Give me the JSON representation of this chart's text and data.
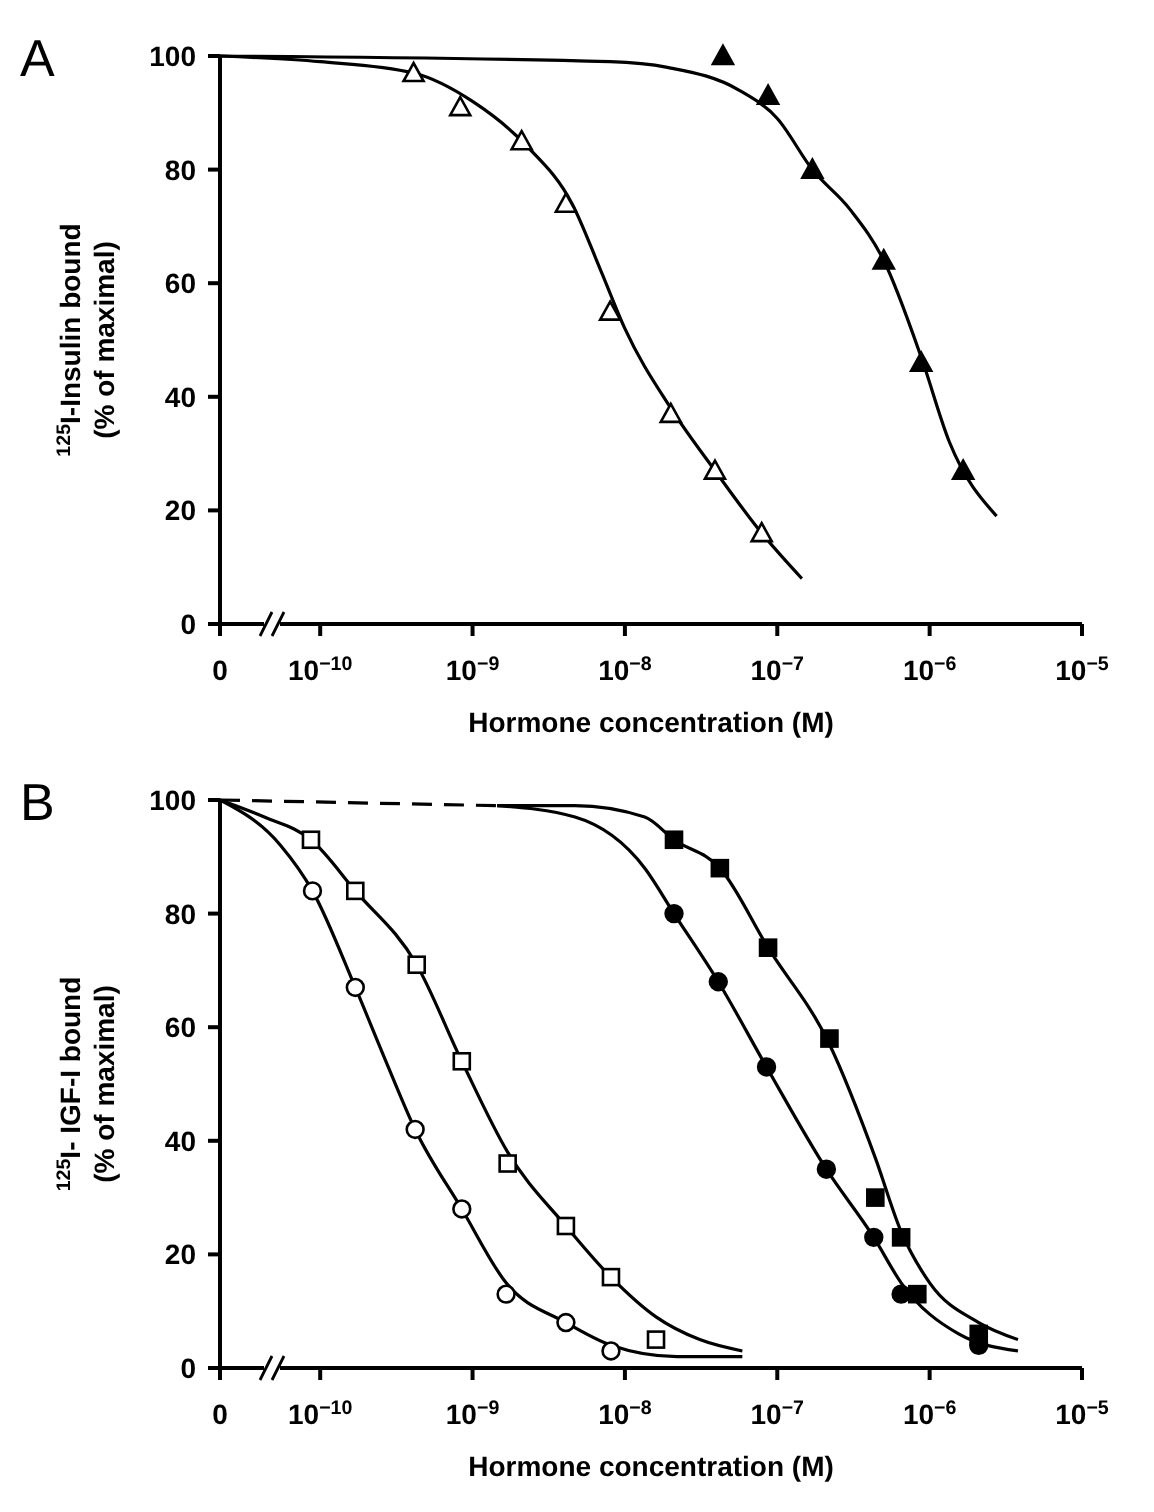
{
  "chart_data": [
    {
      "type": "scatter",
      "title": "A",
      "xlabel": "Hormone concentration (M)",
      "ylabel": "$^{125}$I-Insulin bound\n(% of maximal)",
      "log": "x",
      "xlim": [
        2.2e-11,
        1e-05
      ],
      "xticks": [
        {
          "value": 2.2e-11,
          "label": "0"
        },
        {
          "value": 1e-10,
          "label": "10$^{−10}$"
        },
        {
          "value": 1e-09,
          "label": "10$^{−9}$"
        },
        {
          "value": 1e-08,
          "label": "10$^{−8}$"
        },
        {
          "value": 1e-07,
          "label": "10$^{−7}$"
        },
        {
          "value": 1e-06,
          "label": "10$^{−6}$"
        },
        {
          "value": 1e-05,
          "label": "10$^{−5}$"
        }
      ],
      "ylim": [
        0,
        100
      ],
      "yticks": [
        0,
        20,
        40,
        60,
        80,
        100
      ],
      "series": [
        {
          "type": "line",
          "color": "#000000",
          "marker": "none",
          "line_style": "solid",
          "x": [
            2.2e-11,
            1e-10,
            4.1e-10,
            1e-09,
            2.3e-09,
            4.5e-09,
            7e-09,
            1e-08,
            2e-08,
            3.9e-08,
            7.9e-08,
            1.45e-07
          ],
          "values": [
            100,
            99,
            97,
            92,
            84,
            74,
            62,
            52,
            38,
            27,
            16,
            8
          ]
        },
        {
          "type": "line",
          "color": "#000000",
          "marker": "none",
          "line_style": "solid",
          "x": [
            2.2e-11,
            8e-09,
            1.9e-08,
            5.6e-08,
            1e-07,
            1.7e-07,
            3e-07,
            5e-07,
            8.8e-07,
            1.35e-06,
            2.75e-06
          ],
          "values": [
            100,
            99,
            98,
            94,
            89,
            80,
            73,
            64,
            47,
            32,
            19
          ]
        },
        {
          "color": "#ffffff",
          "marker": "triangle",
          "x": [
            4.1e-10,
            8.3e-10,
            2.1e-09,
            4.1e-09,
            8e-09,
            2e-08,
            3.9e-08,
            7.9e-08
          ],
          "values": [
            97,
            91,
            85,
            74,
            55,
            37,
            27,
            16
          ]
        },
        {
          "color": "#000000",
          "marker": "triangle",
          "x": [
            4.4e-08,
            8.7e-08,
            1.7e-07,
            5e-07,
            8.8e-07,
            1.66e-06
          ],
          "values": [
            100,
            93,
            80,
            64,
            46,
            27
          ]
        }
      ]
    },
    {
      "type": "scatter",
      "title": "B",
      "xlabel": "Hormone concentration (M)",
      "ylabel": "$^{125}$I- IGF-I bound\n(% of maximal)",
      "log": "x",
      "xlim": [
        2.2e-11,
        1e-05
      ],
      "xticks": [
        {
          "value": 2.2e-11,
          "label": "0"
        },
        {
          "value": 1e-10,
          "label": "10$^{−10}$"
        },
        {
          "value": 1e-09,
          "label": "10$^{−9}$"
        },
        {
          "value": 1e-08,
          "label": "10$^{−8}$"
        },
        {
          "value": 1e-07,
          "label": "10$^{−7}$"
        },
        {
          "value": 1e-06,
          "label": "10$^{−6}$"
        },
        {
          "value": 1e-05,
          "label": "10$^{−5}$"
        }
      ],
      "ylim": [
        0,
        100
      ],
      "yticks": [
        0,
        20,
        40,
        60,
        80,
        100
      ],
      "series": [
        {
          "type": "line",
          "color": "#000000",
          "marker": "none",
          "line_style": "dashed",
          "x": [
            2.2e-11,
            1.45e-09
          ],
          "values": [
            100,
            99
          ]
        },
        {
          "type": "line",
          "color": "#000000",
          "marker": "none",
          "line_style": "solid",
          "x": [
            2.2e-11,
            5.5e-11,
            8.9e-11,
            1.7e-10,
            2.7e-10,
            4.2e-10,
            8.5e-10,
            1.66e-09,
            4.1e-09,
            8.1e-09,
            2.2e-08,
            5.9e-08
          ],
          "values": [
            100,
            92,
            84,
            67,
            54,
            42,
            28,
            15,
            8,
            4,
            2,
            2
          ]
        },
        {
          "type": "line",
          "color": "#000000",
          "marker": "none",
          "line_style": "solid",
          "x": [
            2.2e-11,
            4.3e-11,
            8.7e-11,
            1.7e-10,
            4.3e-10,
            8.5e-10,
            1.7e-09,
            4.1e-09,
            8.1e-09,
            1.6e-08,
            3.1e-08,
            5.9e-08
          ],
          "values": [
            100,
            97,
            93,
            84,
            71,
            54,
            38,
            25,
            16,
            9,
            5,
            3
          ]
        },
        {
          "type": "line",
          "color": "#000000",
          "marker": "none",
          "line_style": "solid",
          "x": [
            1.45e-09,
            4.7e-09,
            1.35e-08,
            2.1e-08,
            4.1e-08,
            8.5e-08,
            2.1e-07,
            4.3e-07,
            6.5e-07,
            1.55e-06,
            3.8e-06
          ],
          "values": [
            99,
            97,
            88,
            80,
            68,
            53,
            35,
            23,
            15,
            6,
            3
          ]
        },
        {
          "type": "line",
          "color": "#000000",
          "marker": "none",
          "line_style": "solid",
          "x": [
            1.45e-09,
            4.7e-09,
            1.35e-08,
            2.1e-08,
            4.2e-08,
            8.7e-08,
            2.2e-07,
            4.4e-07,
            6.5e-07,
            1e-06,
            2.1e-06,
            3.8e-06
          ],
          "values": [
            99,
            99,
            97,
            93,
            88,
            74,
            57,
            37,
            24,
            15,
            8,
            5
          ]
        },
        {
          "color": "#ffffff",
          "marker": "circle",
          "x": [
            8.9e-11,
            1.7e-10,
            4.2e-10,
            8.5e-10,
            1.66e-09,
            4.1e-09,
            8.1e-09
          ],
          "values": [
            84,
            67,
            42,
            28,
            13,
            8,
            3
          ]
        },
        {
          "color": "#ffffff",
          "marker": "square",
          "x": [
            8.7e-11,
            1.7e-10,
            4.3e-10,
            8.5e-10,
            1.7e-09,
            4.1e-09,
            8.1e-09,
            1.6e-08
          ],
          "values": [
            93,
            84,
            71,
            54,
            36,
            25,
            16,
            5
          ]
        },
        {
          "color": "#000000",
          "marker": "circle",
          "x": [
            2.1e-08,
            4.1e-08,
            8.5e-08,
            2.1e-07,
            4.3e-07,
            6.5e-07,
            2.1e-06
          ],
          "values": [
            80,
            68,
            53,
            35,
            23,
            13,
            4
          ]
        },
        {
          "color": "#000000",
          "marker": "square",
          "x": [
            2.1e-08,
            4.2e-08,
            8.7e-08,
            2.2e-07,
            4.4e-07,
            6.5e-07,
            8.3e-07,
            2.1e-06
          ],
          "values": [
            93,
            88,
            74,
            58,
            30,
            23,
            13,
            6
          ]
        }
      ]
    }
  ]
}
